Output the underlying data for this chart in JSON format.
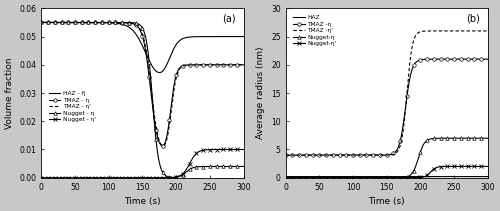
{
  "title_a": "(a)",
  "title_b": "(b)",
  "xlabel": "Time (s)",
  "ylabel_a": "Volume fraction",
  "ylabel_b": "Average radius (nm)",
  "xlim": [
    0,
    300
  ],
  "ylim_a": [
    0,
    0.06
  ],
  "ylim_b": [
    0,
    30
  ],
  "yticks_a": [
    0,
    0.01,
    0.02,
    0.03,
    0.04,
    0.05,
    0.06
  ],
  "yticks_b": [
    0,
    5,
    10,
    15,
    20,
    25,
    30
  ],
  "xticks": [
    0,
    50,
    100,
    150,
    200,
    250,
    300
  ],
  "fig_facecolor": "#c8c8c8",
  "ax_facecolor": "#ffffff",
  "legend_labels_a": [
    "HAZ - η̅",
    "TMAZ - η",
    "TMAZ - η'",
    "Nugget - η",
    "Nugget - η'"
  ],
  "legend_labels_b": [
    "HAZ",
    "TMAZ -η",
    "TMAZ -η'",
    "Nugget-η",
    "Nugget-η'"
  ]
}
